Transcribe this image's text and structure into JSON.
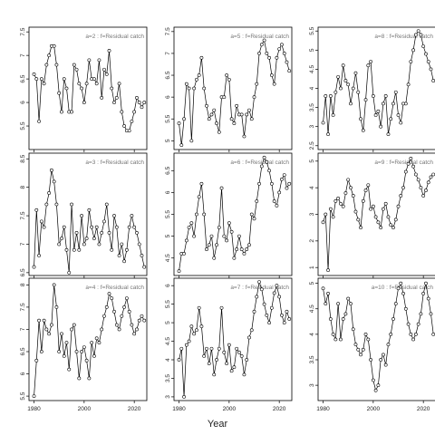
{
  "chart_data": {
    "type": "line",
    "xlabel": "Year",
    "xlim": [
      1978,
      2025
    ],
    "xticks": [
      1980,
      2000,
      2020
    ],
    "columns": 3,
    "rows": 3,
    "show_x_tick_labels_on_bottom_row": true,
    "grid": false,
    "legend": "none",
    "line_color": "#000000",
    "point_style": "open-circle",
    "panels": [
      {
        "label": "a=2  :  f=Residual catch",
        "ylim": [
          5.0,
          7.6
        ],
        "yticks": [
          5.5,
          6.0,
          6.5,
          7.0,
          7.5
        ],
        "x": [
          1980,
          1981,
          1982,
          1983,
          1984,
          1985,
          1986,
          1987,
          1988,
          1989,
          1990,
          1991,
          1992,
          1993,
          1994,
          1995,
          1996,
          1997,
          1998,
          1999,
          2000,
          2001,
          2002,
          2003,
          2004,
          2005,
          2006,
          2007,
          2008,
          2009,
          2010,
          2011,
          2012,
          2013,
          2014,
          2015,
          2016,
          2017,
          2018,
          2019,
          2020,
          2021,
          2022,
          2023,
          2024
        ],
        "y": [
          6.6,
          6.5,
          5.6,
          6.5,
          6.4,
          6.8,
          7.0,
          7.2,
          7.2,
          6.8,
          6.2,
          5.8,
          6.5,
          6.3,
          5.8,
          5.8,
          6.8,
          6.7,
          6.4,
          6.3,
          6.0,
          6.4,
          6.9,
          6.5,
          6.5,
          6.4,
          6.9,
          6.1,
          6.7,
          6.6,
          7.1,
          6.3,
          6.0,
          6.1,
          6.4,
          5.8,
          5.5,
          5.4,
          5.4,
          5.6,
          5.8,
          6.1,
          6.0,
          5.9,
          6.0
        ]
      },
      {
        "label": "a=5  :  f=Residual catch",
        "ylim": [
          4.8,
          7.6
        ],
        "yticks": [
          5.0,
          5.5,
          6.0,
          6.5,
          7.0,
          7.5
        ],
        "x": [
          1980,
          1981,
          1982,
          1983,
          1984,
          1985,
          1986,
          1987,
          1988,
          1989,
          1990,
          1991,
          1992,
          1993,
          1994,
          1995,
          1996,
          1997,
          1998,
          1999,
          2000,
          2001,
          2002,
          2003,
          2004,
          2005,
          2006,
          2007,
          2008,
          2009,
          2010,
          2011,
          2012,
          2013,
          2014,
          2015,
          2016,
          2017,
          2018,
          2019,
          2020,
          2021,
          2022,
          2023,
          2024
        ],
        "y": [
          5.4,
          4.9,
          5.5,
          6.3,
          6.2,
          5.0,
          6.2,
          6.4,
          6.5,
          6.9,
          6.2,
          5.8,
          5.5,
          5.6,
          5.7,
          5.4,
          5.2,
          6.0,
          6.0,
          6.5,
          6.4,
          5.5,
          5.4,
          5.8,
          5.6,
          5.6,
          5.1,
          5.6,
          5.7,
          5.5,
          6.0,
          6.3,
          7.0,
          7.2,
          7.3,
          7.0,
          6.9,
          6.5,
          6.3,
          6.9,
          7.1,
          7.2,
          7.0,
          6.8,
          6.6
        ]
      },
      {
        "label": "a=8  :  f=Residual catch",
        "ylim": [
          2.4,
          5.6
        ],
        "yticks": [
          2.5,
          3.0,
          3.5,
          4.0,
          4.5,
          5.0,
          5.5
        ],
        "x": [
          1980,
          1981,
          1982,
          1983,
          1984,
          1985,
          1986,
          1987,
          1988,
          1989,
          1990,
          1991,
          1992,
          1993,
          1994,
          1995,
          1996,
          1997,
          1998,
          1999,
          2000,
          2001,
          2002,
          2003,
          2004,
          2005,
          2006,
          2007,
          2008,
          2009,
          2010,
          2011,
          2012,
          2013,
          2014,
          2015,
          2016,
          2017,
          2018,
          2019,
          2020,
          2021,
          2022,
          2023,
          2024
        ],
        "y": [
          3.1,
          3.8,
          2.8,
          3.8,
          3.3,
          3.9,
          4.3,
          4.0,
          4.6,
          4.2,
          4.1,
          3.6,
          4.0,
          4.4,
          3.9,
          3.2,
          2.9,
          3.7,
          4.6,
          4.7,
          3.8,
          3.3,
          3.4,
          3.0,
          3.6,
          3.8,
          2.8,
          3.2,
          3.6,
          3.9,
          3.3,
          3.1,
          3.6,
          3.6,
          4.1,
          4.7,
          5.0,
          5.4,
          5.5,
          5.4,
          5.1,
          4.9,
          4.7,
          4.5,
          4.2
        ]
      },
      {
        "label": "a=3  :  f=Residual catch",
        "ylim": [
          6.45,
          8.6
        ],
        "yticks": [
          6.5,
          7.0,
          7.5,
          8.0,
          8.5
        ],
        "x": [
          1980,
          1981,
          1982,
          1983,
          1984,
          1985,
          1986,
          1987,
          1988,
          1989,
          1990,
          1991,
          1992,
          1993,
          1994,
          1995,
          1996,
          1997,
          1998,
          1999,
          2000,
          2001,
          2002,
          2003,
          2004,
          2005,
          2006,
          2007,
          2008,
          2009,
          2010,
          2011,
          2012,
          2013,
          2014,
          2015,
          2016,
          2017,
          2018,
          2019,
          2020,
          2021,
          2022,
          2023,
          2024
        ],
        "y": [
          6.6,
          7.6,
          6.8,
          7.4,
          7.3,
          7.7,
          7.9,
          8.3,
          8.1,
          7.7,
          7.0,
          7.1,
          7.3,
          6.9,
          6.5,
          7.7,
          6.9,
          7.2,
          6.9,
          7.5,
          7.0,
          7.1,
          7.6,
          7.3,
          7.1,
          7.3,
          7.0,
          7.2,
          7.4,
          7.7,
          7.2,
          6.9,
          7.5,
          7.3,
          6.8,
          7.0,
          6.7,
          6.9,
          7.3,
          7.5,
          7.3,
          7.2,
          7.0,
          6.8,
          6.6
        ]
      },
      {
        "label": "a=6  :  f=Residual catch",
        "ylim": [
          4.1,
          6.9
        ],
        "yticks": [
          4.5,
          5.0,
          5.5,
          6.0,
          6.5
        ],
        "x": [
          1980,
          1981,
          1982,
          1983,
          1984,
          1985,
          1986,
          1987,
          1988,
          1989,
          1990,
          1991,
          1992,
          1993,
          1994,
          1995,
          1996,
          1997,
          1998,
          1999,
          2000,
          2001,
          2002,
          2003,
          2004,
          2005,
          2006,
          2007,
          2008,
          2009,
          2010,
          2011,
          2012,
          2013,
          2014,
          2015,
          2016,
          2017,
          2018,
          2019,
          2020,
          2021,
          2022,
          2023,
          2024
        ],
        "y": [
          4.2,
          4.6,
          4.6,
          4.9,
          5.2,
          5.3,
          5.0,
          5.5,
          5.9,
          6.2,
          5.5,
          4.7,
          4.8,
          5.0,
          4.5,
          4.8,
          5.2,
          6.1,
          5.0,
          4.9,
          5.3,
          5.1,
          4.5,
          4.7,
          5.0,
          4.7,
          4.6,
          4.7,
          4.8,
          5.5,
          5.4,
          5.8,
          6.2,
          6.6,
          6.8,
          6.7,
          6.5,
          6.2,
          5.8,
          5.7,
          6.0,
          6.3,
          6.4,
          6.1,
          6.2
        ]
      },
      {
        "label": "a=9  :  f=Residual catch",
        "ylim": [
          0.7,
          5.3
        ],
        "yticks": [
          1,
          2,
          3,
          4,
          5
        ],
        "x": [
          1980,
          1981,
          1982,
          1983,
          1984,
          1985,
          1986,
          1987,
          1988,
          1989,
          1990,
          1991,
          1992,
          1993,
          1994,
          1995,
          1996,
          1997,
          1998,
          1999,
          2000,
          2001,
          2002,
          2003,
          2004,
          2005,
          2006,
          2007,
          2008,
          2009,
          2010,
          2011,
          2012,
          2013,
          2014,
          2015,
          2016,
          2017,
          2018,
          2019,
          2020,
          2021,
          2022,
          2023,
          2024
        ],
        "y": [
          2.7,
          3.0,
          0.9,
          3.2,
          2.9,
          3.5,
          3.6,
          3.4,
          3.3,
          3.8,
          4.3,
          4.0,
          3.7,
          3.1,
          2.8,
          2.5,
          3.5,
          3.9,
          4.1,
          3.2,
          3.3,
          2.9,
          2.7,
          2.5,
          3.2,
          3.4,
          2.9,
          2.6,
          2.5,
          2.8,
          3.3,
          3.7,
          4.0,
          4.6,
          4.9,
          5.1,
          4.8,
          4.5,
          4.3,
          4.0,
          3.7,
          3.9,
          4.2,
          4.4,
          4.5
        ]
      },
      {
        "label": "a=4  :  f=Residual catch",
        "ylim": [
          5.4,
          8.15
        ],
        "yticks": [
          5.5,
          6.0,
          6.5,
          7.0,
          7.5,
          8.0
        ],
        "x": [
          1980,
          1981,
          1982,
          1983,
          1984,
          1985,
          1986,
          1987,
          1988,
          1989,
          1990,
          1991,
          1992,
          1993,
          1994,
          1995,
          1996,
          1997,
          1998,
          1999,
          2000,
          2001,
          2002,
          2003,
          2004,
          2005,
          2006,
          2007,
          2008,
          2009,
          2010,
          2011,
          2012,
          2013,
          2014,
          2015,
          2016,
          2017,
          2018,
          2019,
          2020,
          2021,
          2022,
          2023,
          2024
        ],
        "y": [
          5.5,
          6.3,
          7.2,
          6.5,
          7.2,
          7.0,
          6.9,
          7.1,
          8.0,
          7.5,
          6.5,
          6.9,
          6.4,
          6.7,
          6.1,
          7.0,
          7.1,
          6.5,
          5.9,
          6.5,
          6.6,
          6.3,
          5.9,
          6.7,
          6.4,
          6.8,
          6.7,
          7.0,
          7.3,
          7.5,
          7.8,
          7.7,
          7.4,
          7.1,
          7.0,
          7.3,
          7.5,
          7.7,
          7.4,
          7.1,
          6.9,
          7.0,
          7.2,
          7.3,
          7.2
        ]
      },
      {
        "label": "a=7  :  f=Residual catch",
        "ylim": [
          2.9,
          6.2
        ],
        "yticks": [
          3.0,
          3.5,
          4.0,
          4.5,
          5.0,
          5.5,
          6.0
        ],
        "x": [
          1980,
          1981,
          1982,
          1983,
          1984,
          1985,
          1986,
          1987,
          1988,
          1989,
          1990,
          1991,
          1992,
          1993,
          1994,
          1995,
          1996,
          1997,
          1998,
          1999,
          2000,
          2001,
          2002,
          2003,
          2004,
          2005,
          2006,
          2007,
          2008,
          2009,
          2010,
          2011,
          2012,
          2013,
          2014,
          2015,
          2016,
          2017,
          2018,
          2019,
          2020,
          2021,
          2022,
          2023,
          2024
        ],
        "y": [
          4.0,
          4.3,
          3.0,
          4.4,
          4.5,
          4.9,
          4.7,
          4.8,
          5.4,
          4.9,
          4.1,
          4.3,
          3.9,
          4.3,
          3.6,
          4.0,
          4.3,
          5.4,
          4.2,
          3.9,
          4.4,
          3.7,
          3.8,
          4.3,
          4.2,
          4.1,
          3.6,
          4.0,
          4.6,
          4.8,
          5.3,
          5.7,
          6.1,
          5.9,
          5.5,
          5.2,
          5.0,
          5.4,
          5.8,
          6.0,
          5.7,
          5.2,
          5.0,
          5.3,
          5.1
        ]
      },
      {
        "label": "a=10  :  f=Residual catch",
        "ylim": [
          2.7,
          5.1
        ],
        "yticks": [
          3.0,
          3.5,
          4.0,
          4.5,
          5.0
        ],
        "x": [
          1980,
          1981,
          1982,
          1983,
          1984,
          1985,
          1986,
          1987,
          1988,
          1989,
          1990,
          1991,
          1992,
          1993,
          1994,
          1995,
          1996,
          1997,
          1998,
          1999,
          2000,
          2001,
          2002,
          2003,
          2004,
          2005,
          2006,
          2007,
          2008,
          2009,
          2010,
          2011,
          2012,
          2013,
          2014,
          2015,
          2016,
          2017,
          2018,
          2019,
          2020,
          2021,
          2022,
          2023,
          2024
        ],
        "y": [
          4.9,
          4.6,
          4.8,
          4.3,
          4.0,
          3.9,
          4.6,
          3.9,
          4.3,
          4.4,
          4.7,
          4.6,
          4.1,
          3.8,
          3.7,
          3.6,
          3.7,
          4.0,
          3.9,
          3.5,
          3.1,
          2.9,
          3.0,
          3.5,
          3.6,
          3.4,
          3.8,
          4.0,
          4.3,
          4.6,
          4.9,
          5.0,
          4.8,
          4.5,
          4.2,
          4.0,
          3.9,
          4.0,
          4.2,
          4.4,
          4.8,
          5.0,
          4.7,
          4.4,
          4.0
        ]
      }
    ]
  }
}
